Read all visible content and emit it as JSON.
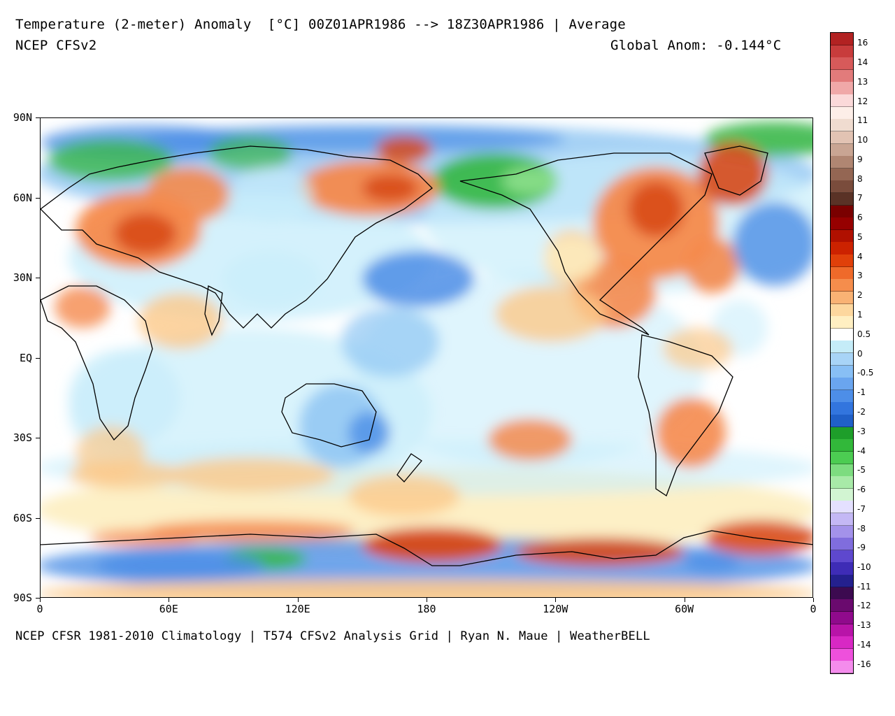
{
  "header": {
    "title": "Temperature (2-meter) Anomaly  [°C] 00Z01APR1986 --> 18Z30APR1986 | Average",
    "model": "NCEP CFSv2",
    "global_anomaly": "Global Anom: -0.144°C"
  },
  "footer": "NCEP CFSR 1981-2010 Climatology | T574 CFSv2 Analysis Grid | Ryan N. Maue | WeatherBELL",
  "axes": {
    "lat_labels": [
      "90N",
      "60N",
      "30N",
      "EQ",
      "30S",
      "60S",
      "90S"
    ],
    "lon_labels": [
      "0",
      "60E",
      "120E",
      "180",
      "120W",
      "60W",
      "0"
    ]
  },
  "colorbar": {
    "labels": [
      "16",
      "14",
      "13",
      "12",
      "11",
      "10",
      "9",
      "8",
      "7",
      "6",
      "5",
      "4",
      "3",
      "2",
      "1",
      "0.5",
      "0",
      "-0.5",
      "-1",
      "-2",
      "-3",
      "-4",
      "-5",
      "-6",
      "-7",
      "-8",
      "-9",
      "-10",
      "-11",
      "-12",
      "-13",
      "-14",
      "-16"
    ],
    "colors": [
      "#b22222",
      "#c83c3c",
      "#d75a5a",
      "#e27b7b",
      "#f0a8a8",
      "#fbd9d9",
      "#fdeee8",
      "#f0dcd0",
      "#e2c3b3",
      "#c9a593",
      "#b08672",
      "#946653",
      "#7a4c3c",
      "#5a3226",
      "#7a0000",
      "#960000",
      "#b01000",
      "#cc2200",
      "#e0400a",
      "#ef6a2a",
      "#f58d4c",
      "#f9b274",
      "#fdd79e",
      "#ffefc2",
      "#ffffff",
      "#c5ecf8",
      "#a8d4f7",
      "#88bff5",
      "#6aa5ef",
      "#4d8ee8",
      "#3275de",
      "#2060c8",
      "#1e9e2a",
      "#32b83a",
      "#4ccc52",
      "#7ddc80",
      "#a8eaa8",
      "#d2f5d2",
      "#e4e0ff",
      "#c4b8f5",
      "#a392ea",
      "#806ddd",
      "#5e48ce",
      "#3e2cb6",
      "#24208e",
      "#3c0a50",
      "#6a0a6e",
      "#900a8c",
      "#b814a8",
      "#d828c4",
      "#ee50dc",
      "#f48cec"
    ],
    "swatch_count": 52
  },
  "map": {
    "background_anomaly_colors": {
      "strong_warm": "#d84a1a",
      "warm": "#f58a4c",
      "mild_warm": "#fcc98a",
      "slight_warm": "#fdeec0",
      "neutral": "#ffffff",
      "slight_cool": "#c9eefb",
      "cool": "#8fc6f3",
      "cold": "#4c8ee6",
      "very_cold": "#2a6ad2",
      "green_cold": "#3ab84a",
      "light_green": "#8de08c",
      "purple_extreme": "#a292ea"
    },
    "coastline_color": "#000000"
  }
}
